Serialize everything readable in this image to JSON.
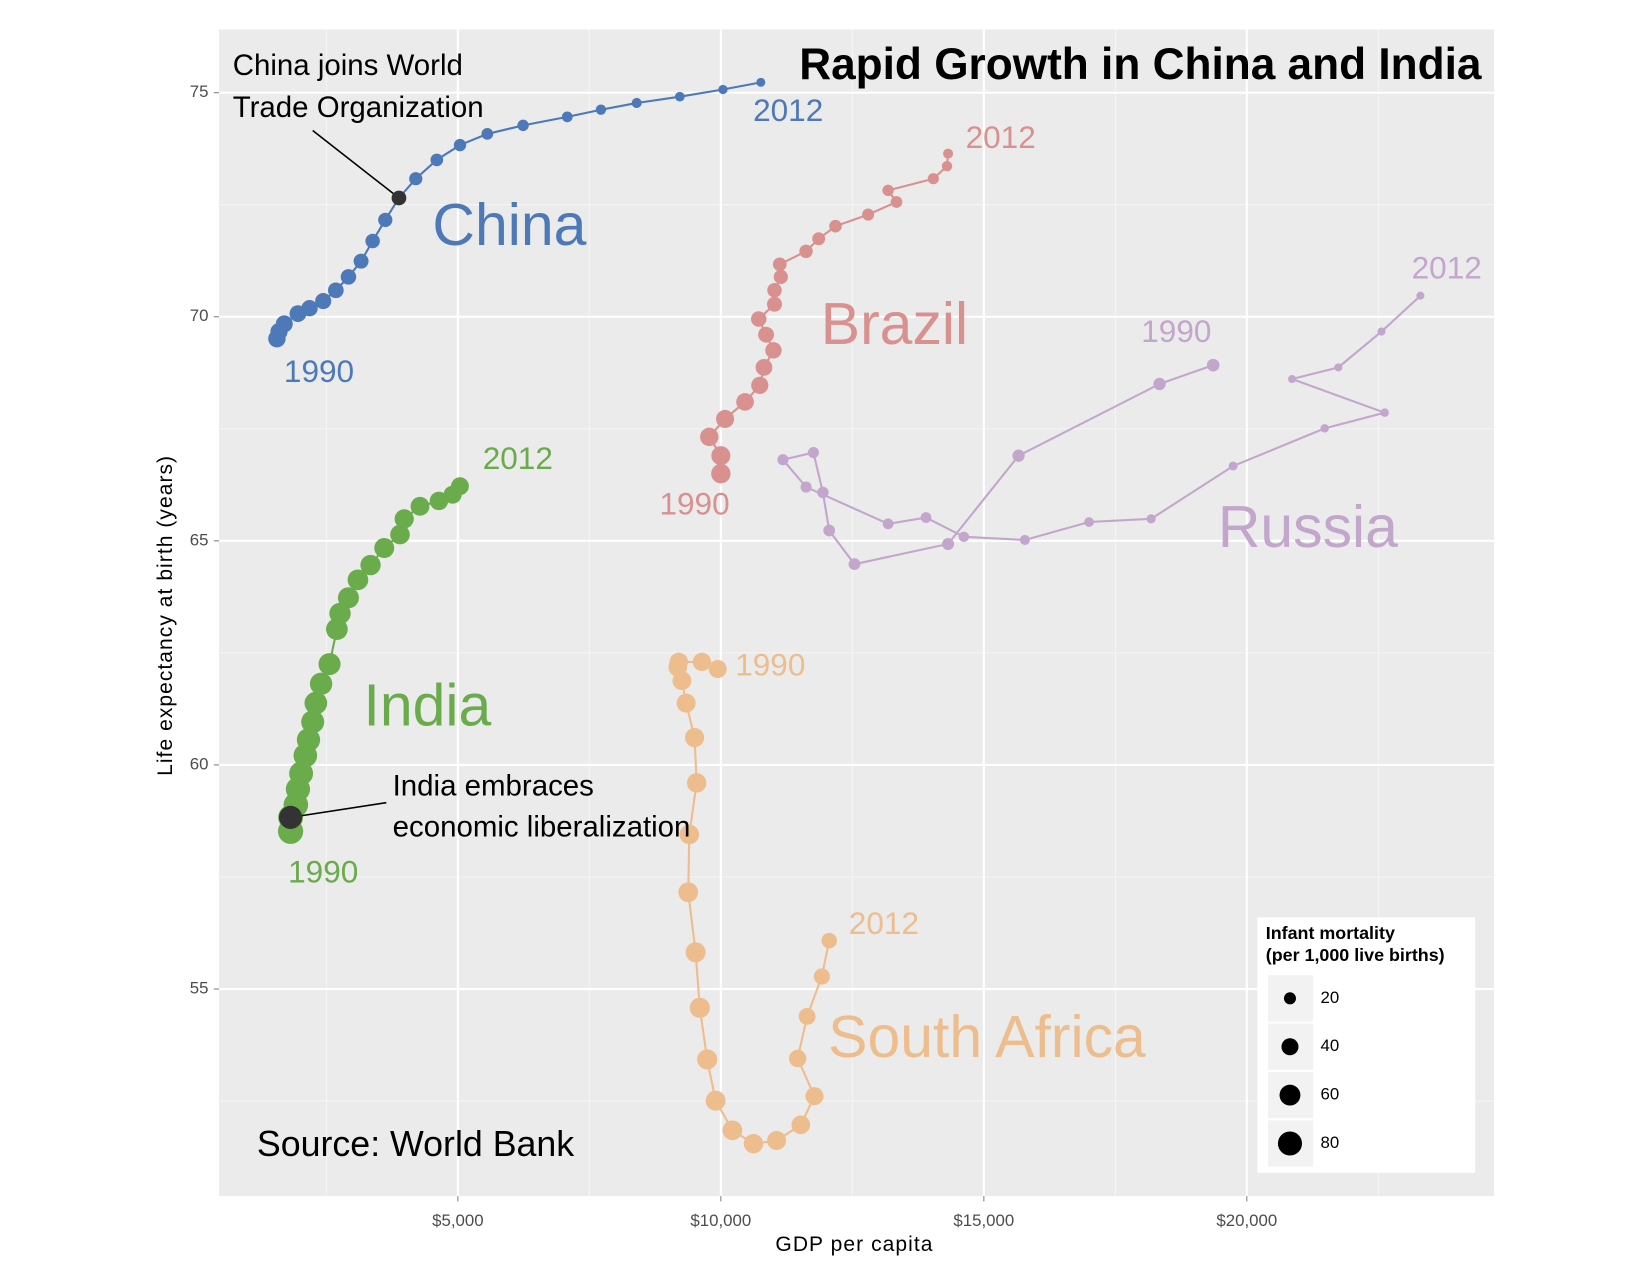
{
  "chart_data": {
    "type": "connected-scatter",
    "title": "Rapid Growth in China and India",
    "source": "Source: World Bank",
    "x_label": "GDP per capita",
    "y_label": "Life expectancy at birth (years)",
    "xlim": [
      460,
      24700
    ],
    "ylim": [
      50.38,
      76.41
    ],
    "xticks": [
      {
        "value": 5000,
        "label": "$5,000"
      },
      {
        "value": 10000,
        "label": "$10,000"
      },
      {
        "value": 15000,
        "label": "$15,000"
      },
      {
        "value": 20000,
        "label": "$20,000"
      }
    ],
    "yticks": [
      55,
      60,
      65,
      70,
      75
    ],
    "grid": true,
    "legend_position": "bottom-right",
    "size_legend": {
      "title": [
        "Infant mortality",
        "(per 1,000 live births)"
      ],
      "values": [
        20,
        40,
        60,
        80
      ]
    },
    "series": [
      {
        "name": "China",
        "color": "#4e79b8",
        "start_label": "1990",
        "end_label": "2012",
        "x": [
          1560,
          1600,
          1700,
          1960,
          2180,
          2440,
          2680,
          2920,
          3160,
          3380,
          3620,
          3880,
          4200,
          4600,
          5040,
          5560,
          6240,
          7080,
          7720,
          8400,
          9220,
          10040,
          10760
        ],
        "y": [
          69.51,
          69.67,
          69.84,
          70.07,
          70.19,
          70.35,
          70.59,
          70.89,
          71.24,
          71.69,
          72.16,
          72.65,
          73.08,
          73.5,
          73.83,
          74.08,
          74.27,
          74.46,
          74.62,
          74.77,
          74.91,
          75.07,
          75.23
        ],
        "size": [
          42,
          41,
          40,
          39,
          37,
          36,
          34,
          33,
          31,
          29,
          28,
          26,
          24,
          22,
          21,
          19,
          18,
          16,
          15,
          14,
          13,
          12,
          11
        ]
      },
      {
        "name": "Brazil",
        "color": "#d9918f",
        "start_label": "1990",
        "end_label": "2012",
        "x": [
          10000,
          10000,
          9780,
          10080,
          10460,
          10740,
          10820,
          11000,
          10860,
          10720,
          11020,
          11020,
          11140,
          11120,
          11620,
          11860,
          12180,
          12800,
          13340,
          13180,
          14040,
          14300,
          14320
        ],
        "y": [
          66.5,
          66.9,
          67.32,
          67.72,
          68.1,
          68.47,
          68.87,
          69.25,
          69.6,
          69.95,
          70.28,
          70.59,
          70.89,
          71.17,
          71.46,
          71.74,
          72.02,
          72.28,
          72.56,
          72.82,
          73.08,
          73.36,
          73.64
        ],
        "size": [
          52,
          50,
          47,
          45,
          43,
          41,
          39,
          37,
          35,
          33,
          31,
          29,
          28,
          26,
          25,
          23,
          22,
          20,
          19,
          18,
          17,
          15,
          14
        ]
      },
      {
        "name": "Russia",
        "color": "#c3a6cc",
        "start_label": "1990",
        "end_label": "2012",
        "x": [
          19360,
          18340,
          15660,
          14320,
          12540,
          12060,
          11940,
          11760,
          11180,
          11620,
          13180,
          13900,
          14620,
          15780,
          17000,
          18180,
          19740,
          21480,
          22620,
          20860,
          21740,
          22560,
          23300
        ],
        "y": [
          68.92,
          68.5,
          66.9,
          64.93,
          64.48,
          65.23,
          66.08,
          66.97,
          66.81,
          66.2,
          65.38,
          65.52,
          65.09,
          65.02,
          65.42,
          65.49,
          66.67,
          67.51,
          67.86,
          68.61,
          68.87,
          69.67,
          70.47
        ],
        "size": [
          22,
          21,
          21,
          20,
          19,
          19,
          18,
          17,
          17,
          17,
          16,
          16,
          15,
          14,
          13,
          12,
          11,
          10,
          10,
          9,
          9,
          9,
          9
        ]
      },
      {
        "name": "India",
        "color": "#6aab4c",
        "start_label": "1990",
        "end_label": "2012",
        "x": [
          1820,
          1820,
          1920,
          1960,
          2020,
          2100,
          2160,
          2240,
          2300,
          2400,
          2560,
          2700,
          2760,
          2920,
          3100,
          3340,
          3600,
          3900,
          3980,
          4280,
          4640,
          4900,
          5040
        ],
        "y": [
          58.52,
          58.83,
          59.11,
          59.46,
          59.81,
          60.21,
          60.56,
          60.96,
          61.38,
          61.81,
          62.25,
          63.03,
          63.38,
          63.73,
          64.13,
          64.46,
          64.84,
          65.14,
          65.49,
          65.77,
          65.89,
          66.03,
          66.22
        ],
        "size": [
          88,
          85,
          83,
          81,
          79,
          77,
          75,
          73,
          71,
          69,
          67,
          65,
          63,
          61,
          59,
          57,
          55,
          53,
          51,
          49,
          47,
          45,
          44
        ]
      },
      {
        "name": "South Africa",
        "color": "#edbd8d",
        "start_label": "1990",
        "end_label": "2012",
        "x": [
          9940,
          9640,
          9200,
          9180,
          9260,
          9340,
          9500,
          9540,
          9400,
          9380,
          9520,
          9600,
          9740,
          9900,
          10220,
          10620,
          11060,
          11520,
          11780,
          11460,
          11640,
          11920,
          12060
        ],
        "y": [
          62.14,
          62.3,
          62.3,
          62.18,
          61.88,
          61.38,
          60.61,
          59.6,
          58.45,
          57.16,
          55.82,
          54.58,
          53.43,
          52.51,
          51.85,
          51.55,
          51.62,
          51.97,
          52.61,
          53.45,
          54.39,
          55.28,
          56.08
        ],
        "size": [
          45,
          46,
          47,
          48,
          49,
          50,
          51,
          52,
          53,
          54,
          55,
          56,
          56,
          55,
          54,
          52,
          50,
          48,
          45,
          42,
          39,
          36,
          33
        ]
      }
    ],
    "annotations": [
      {
        "text": [
          "China joins World",
          "Trade Organization"
        ],
        "x": 3880,
        "y": 72.65
      },
      {
        "text": [
          "India embraces",
          "economic liberalization"
        ],
        "x": 1820,
        "y": 58.83
      }
    ]
  }
}
